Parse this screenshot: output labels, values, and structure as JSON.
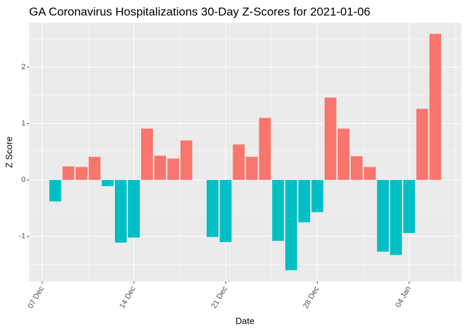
{
  "chart_data": {
    "type": "bar",
    "title": "GA Coronavirus Hospitalizations 30-Day Z-Scores for 2021-01-06",
    "x_label": "Date",
    "y_label": "Z Score",
    "x": [
      "12-08",
      "12-09",
      "12-10",
      "12-11",
      "12-12",
      "12-13",
      "12-14",
      "12-15",
      "12-16",
      "12-17",
      "12-18",
      "12-19",
      "12-20",
      "12-21",
      "12-22",
      "12-23",
      "12-24",
      "12-25",
      "12-26",
      "12-27",
      "12-28",
      "12-29",
      "12-30",
      "12-31",
      "01-01",
      "01-02",
      "01-03",
      "01-04",
      "01-05",
      "01-06"
    ],
    "values": [
      -0.38,
      0.24,
      0.23,
      0.41,
      -0.11,
      -1.11,
      -1.02,
      0.91,
      0.43,
      0.38,
      0.7,
      null,
      -1.01,
      -1.1,
      0.63,
      0.41,
      1.1,
      -1.08,
      -1.6,
      -0.75,
      -0.57,
      1.46,
      0.91,
      0.42,
      0.23,
      -1.27,
      -1.33,
      -0.94,
      1.26,
      2.59
    ],
    "colors": {
      "positive": "#f8766d",
      "negative": "#00bfc4"
    },
    "xlim": [
      "12-06",
      "01-08"
    ],
    "xticks": [
      {
        "value": "12-07",
        "label": "07 Dec"
      },
      {
        "value": "12-14",
        "label": "14 Dec"
      },
      {
        "value": "12-21",
        "label": "21 Dec"
      },
      {
        "value": "12-28",
        "label": "28 Dec"
      },
      {
        "value": "01-04",
        "label": "04 Jan"
      }
    ],
    "ylim": [
      -1.8,
      2.785
    ],
    "yticks": [
      -1,
      0,
      1,
      2
    ],
    "grid": true
  }
}
